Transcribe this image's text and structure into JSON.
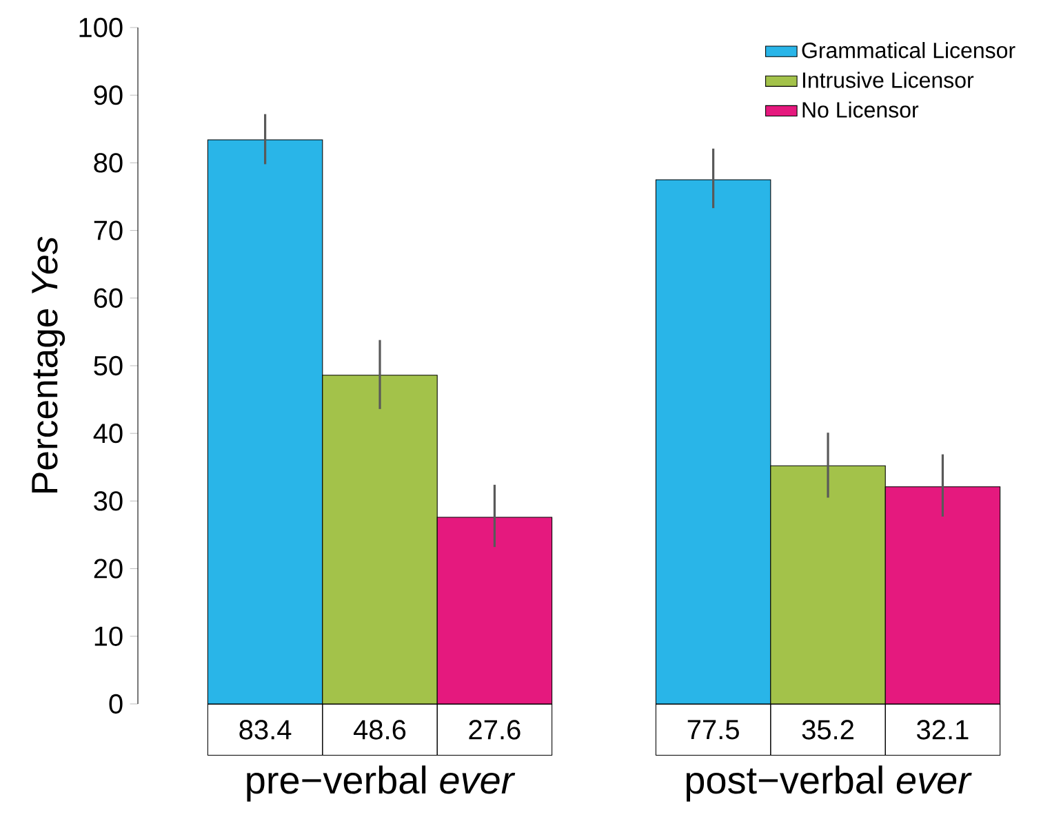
{
  "chart_data": {
    "type": "bar",
    "ylabel": "Percentage *Yes*",
    "categories": [
      "pre−verbal *ever*",
      "post−verbal *ever*"
    ],
    "series": [
      {
        "name": "Grammatical Licensor",
        "color": "#29b5e8",
        "values": [
          83.4,
          77.5
        ],
        "errors": [
          [
            79.8,
            87.2
          ],
          [
            73.3,
            82.1
          ]
        ]
      },
      {
        "name": "Intrusive Licensor",
        "color": "#a3c24a",
        "values": [
          48.6,
          35.2
        ],
        "errors": [
          [
            43.6,
            53.8
          ],
          [
            30.5,
            40.1
          ]
        ]
      },
      {
        "name": "No Licensor",
        "color": "#e5197e",
        "values": [
          27.6,
          32.1
        ],
        "errors": [
          [
            23.2,
            32.4
          ],
          [
            27.7,
            36.9
          ]
        ]
      }
    ],
    "ylim": [
      0,
      100
    ],
    "yticks": [
      0,
      10,
      20,
      30,
      40,
      50,
      60,
      70,
      80,
      90,
      100
    ],
    "legend": "top right",
    "data_labels": true
  }
}
